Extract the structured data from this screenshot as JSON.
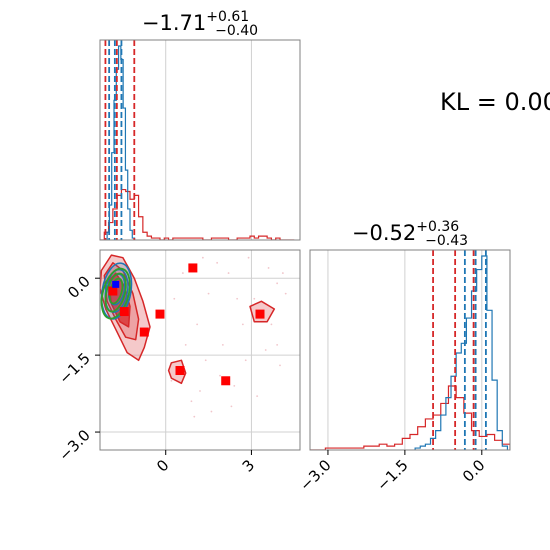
{
  "kl_label": "KL = 0.00",
  "colors": {
    "red": "#d62728",
    "red_fill": "#e8888a",
    "red_fill_dark": "#d62728",
    "blue": "#1f77b4",
    "green": "#2ca02c",
    "grid": "#d0d0d0",
    "frame": "#808080"
  },
  "chart_data": [
    {
      "type": "histogram",
      "panel": "top-left (parameter 1 marginal)",
      "title": {
        "main": "−1.71",
        "sup": "+0.61",
        "sub": "−0.40"
      },
      "xlim": [
        -2.3,
        4.7
      ],
      "x_ticks": [
        0,
        3
      ],
      "series": [
        {
          "name": "",
          "color": "red",
          "bins_x": [
            -2.3,
            -2.15,
            -2.0,
            -1.85,
            -1.7,
            -1.55,
            -1.4,
            -1.25,
            -1.1,
            -0.95,
            -0.8,
            -0.65,
            -0.5,
            -0.35,
            -0.2,
            -0.05,
            0.1,
            0.25,
            0.4,
            0.55,
            0.7,
            0.85,
            1.0,
            1.15,
            1.3,
            1.45,
            1.6,
            1.75,
            1.9,
            2.05,
            2.2,
            2.35,
            2.5,
            2.65,
            2.8,
            2.95,
            3.1,
            3.25,
            3.4,
            3.55,
            3.7,
            3.85,
            4.0,
            4.15,
            4.3,
            4.5
          ],
          "heights": [
            0.0,
            0.04,
            0.09,
            0.16,
            0.23,
            0.26,
            0.25,
            0.21,
            0.23,
            0.12,
            0.04,
            0.02,
            0.01,
            0.01,
            0.0,
            0.01,
            0.0,
            0.01,
            0.01,
            0.01,
            0.01,
            0.01,
            0.01,
            0.01,
            0.0,
            0.0,
            0.01,
            0.01,
            0.01,
            0.01,
            0.0,
            0.0,
            0.01,
            0.01,
            0.01,
            0.02,
            0.01,
            0.02,
            0.02,
            0.01,
            0.0,
            0.01,
            0.0,
            0.0,
            0.0
          ]
        },
        {
          "name": "",
          "color": "blue",
          "bins_x": [
            -2.05,
            -1.97,
            -1.89,
            -1.81,
            -1.73,
            -1.65,
            -1.57,
            -1.49,
            -1.41,
            -1.33,
            -1.25,
            -1.17,
            -1.09
          ],
          "heights": [
            0.04,
            0.18,
            0.45,
            0.72,
            0.88,
            1.0,
            0.93,
            0.68,
            0.36,
            0.16,
            0.05,
            0.01
          ]
        }
      ],
      "vlines": [
        {
          "color": "red",
          "x": -2.11
        },
        {
          "color": "red",
          "x": -1.71
        },
        {
          "color": "red",
          "x": -1.1
        },
        {
          "color": "blue",
          "x": -1.98
        },
        {
          "color": "blue",
          "x": -1.78
        },
        {
          "color": "blue",
          "x": -1.55
        }
      ]
    },
    {
      "type": "scatter",
      "panel": "bottom-left (joint 2D)",
      "xlim": [
        -2.3,
        4.7
      ],
      "ylim": [
        -3.35,
        0.55
      ],
      "x_ticks": [
        "0",
        "3"
      ],
      "y_ticks": [
        "0.0",
        "−1.5",
        "−3.0"
      ],
      "x_tick_values": [
        0,
        3
      ],
      "y_tick_values": [
        0.0,
        -1.5,
        -3.0
      ],
      "red_squares": [
        {
          "x": 0.95,
          "y": 0.2
        },
        {
          "x": -1.85,
          "y": -0.25
        },
        {
          "x": -1.45,
          "y": -0.65
        },
        {
          "x": -0.2,
          "y": -0.7
        },
        {
          "x": -0.75,
          "y": -1.05
        },
        {
          "x": 3.3,
          "y": -0.7
        },
        {
          "x": 0.5,
          "y": -1.8
        },
        {
          "x": 2.1,
          "y": -2.0
        }
      ],
      "blue_point": {
        "x": -1.75,
        "y": -0.12
      },
      "faint_points": [
        [
          1.8,
          0.3
        ],
        [
          2.2,
          0.1
        ],
        [
          2.9,
          0.4
        ],
        [
          3.6,
          0.2
        ],
        [
          3.9,
          -0.1
        ],
        [
          4.2,
          -0.3
        ],
        [
          2.5,
          -0.4
        ],
        [
          1.5,
          -0.3
        ],
        [
          2.7,
          -0.9
        ],
        [
          3.9,
          -1.3
        ],
        [
          4.0,
          -1.7
        ],
        [
          3.5,
          -1.4
        ],
        [
          2.8,
          -1.6
        ],
        [
          1.9,
          -1.9
        ],
        [
          1.2,
          -2.2
        ],
        [
          1.6,
          -2.6
        ],
        [
          2.3,
          -2.5
        ],
        [
          0.9,
          -2.4
        ],
        [
          1.4,
          -1.6
        ],
        [
          0.7,
          -1.3
        ],
        [
          0.3,
          -0.4
        ],
        [
          1.1,
          -0.9
        ],
        [
          2.0,
          -1.3
        ],
        [
          3.1,
          -0.4
        ],
        [
          1.3,
          0.4
        ],
        [
          0.6,
          0.1
        ],
        [
          2.4,
          -2.1
        ],
        [
          4.1,
          0.1
        ],
        [
          3.7,
          -0.9
        ],
        [
          0.2,
          -2.0
        ],
        [
          1.0,
          -2.7
        ],
        [
          3.2,
          -2.3
        ]
      ]
    },
    {
      "type": "histogram",
      "panel": "bottom-right (parameter 2 marginal)",
      "title": {
        "main": "−0.52",
        "sup": "+0.36",
        "sub": "−0.43"
      },
      "xlim": [
        -3.35,
        0.55
      ],
      "x_ticks": [
        "−3.0",
        "−1.5",
        "0.0"
      ],
      "x_tick_values": [
        -3.0,
        -1.5,
        0.0
      ],
      "series": [
        {
          "name": "",
          "color": "red",
          "bins_x": [
            -3.35,
            -3.2,
            -3.05,
            -2.9,
            -2.75,
            -2.6,
            -2.45,
            -2.3,
            -2.15,
            -2.0,
            -1.85,
            -1.7,
            -1.55,
            -1.4,
            -1.25,
            -1.1,
            -0.95,
            -0.8,
            -0.65,
            -0.5,
            -0.35,
            -0.2,
            -0.05,
            0.1,
            0.25,
            0.4,
            0.55
          ],
          "heights": [
            0.0,
            0.0,
            0.01,
            0.01,
            0.01,
            0.01,
            0.01,
            0.02,
            0.02,
            0.03,
            0.02,
            0.03,
            0.06,
            0.08,
            0.12,
            0.16,
            0.18,
            0.24,
            0.33,
            0.27,
            0.19,
            0.1,
            0.07,
            0.08,
            0.05,
            0.03
          ]
        },
        {
          "name": "",
          "color": "blue",
          "bins_x": [
            -1.3,
            -1.2,
            -1.1,
            -1.0,
            -0.9,
            -0.8,
            -0.7,
            -0.6,
            -0.5,
            -0.4,
            -0.3,
            -0.2,
            -0.1,
            0.0,
            0.1,
            0.2,
            0.3,
            0.4,
            0.5
          ],
          "heights": [
            0.01,
            0.02,
            0.03,
            0.06,
            0.1,
            0.18,
            0.27,
            0.38,
            0.5,
            0.55,
            0.68,
            0.82,
            0.93,
            1.0,
            0.72,
            0.36,
            0.1,
            0.02
          ]
        }
      ],
      "vlines": [
        {
          "color": "red",
          "x": -0.95
        },
        {
          "color": "red",
          "x": -0.52
        },
        {
          "color": "red",
          "x": -0.16
        },
        {
          "color": "blue",
          "x": -0.33
        },
        {
          "color": "blue",
          "x": -0.12
        },
        {
          "color": "blue",
          "x": 0.08
        }
      ]
    }
  ]
}
